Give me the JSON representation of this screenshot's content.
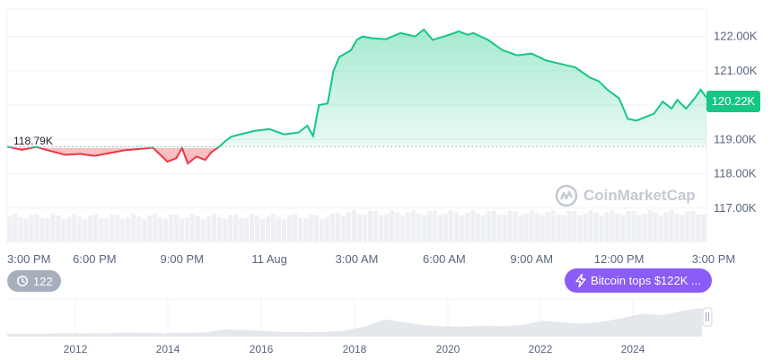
{
  "chart_data": {
    "type": "area",
    "title": "",
    "xlabel": "",
    "ylabel": "",
    "open_price_label": "118.79K",
    "open_price": 118.79,
    "current_price_label": "120.22K",
    "current_price": 120.22,
    "ylim": [
      116.0,
      122.8
    ],
    "y_ticks": [
      {
        "label": "122.00K",
        "value": 122.0
      },
      {
        "label": "121.00K",
        "value": 121.0
      },
      {
        "label": "120.00K",
        "value": 120.0
      },
      {
        "label": "119.00K",
        "value": 119.0
      },
      {
        "label": "118.00K",
        "value": 118.0
      },
      {
        "label": "117.00K",
        "value": 117.0
      }
    ],
    "xlim_hours": [
      0,
      24
    ],
    "x_ticks": [
      {
        "label": "3:00 PM",
        "hour": 0
      },
      {
        "label": "6:00 PM",
        "hour": 3
      },
      {
        "label": "9:00 PM",
        "hour": 6
      },
      {
        "label": "11 Aug",
        "hour": 9
      },
      {
        "label": "3:00 AM",
        "hour": 12
      },
      {
        "label": "6:00 AM",
        "hour": 15
      },
      {
        "label": "9:00 AM",
        "hour": 18
      },
      {
        "label": "12:00 PM",
        "hour": 21
      },
      {
        "label": "3:00 PM",
        "hour": 24
      }
    ],
    "series": [
      {
        "x": [
          0,
          0.5,
          1.0,
          1.5,
          2.0,
          2.5,
          3.0,
          3.5,
          4.0,
          4.5,
          5.0,
          5.5,
          5.8,
          6.0,
          6.2,
          6.5,
          6.8,
          7.0,
          7.3,
          7.5,
          7.7,
          8.0,
          8.5,
          9.0,
          9.5,
          10.0,
          10.3,
          10.5,
          10.7,
          11.0,
          11.2,
          11.4,
          11.6,
          11.8,
          12.0,
          12.2,
          12.5,
          13.0,
          13.5,
          14.0,
          14.3,
          14.6,
          15.0,
          15.5,
          15.8,
          16.0,
          16.5,
          17.0,
          17.5,
          18.0,
          18.5,
          19.0,
          19.5,
          20.0,
          20.3,
          20.6,
          21.0,
          21.3,
          21.6,
          21.9,
          22.2,
          22.5,
          22.8,
          23.0,
          23.3,
          23.6,
          23.8,
          24.0
        ],
        "values": [
          118.79,
          118.7,
          118.78,
          118.66,
          118.55,
          118.58,
          118.52,
          118.6,
          118.68,
          118.72,
          118.76,
          118.35,
          118.45,
          118.75,
          118.3,
          118.5,
          118.4,
          118.62,
          118.8,
          118.96,
          119.08,
          119.15,
          119.25,
          119.3,
          119.15,
          119.2,
          119.4,
          119.1,
          120.0,
          120.05,
          121.0,
          121.4,
          121.5,
          121.6,
          121.9,
          122.0,
          121.95,
          121.92,
          122.1,
          122.0,
          122.2,
          121.9,
          122.0,
          122.15,
          122.05,
          122.1,
          121.9,
          121.6,
          121.45,
          121.5,
          121.3,
          121.2,
          121.1,
          120.8,
          120.7,
          120.45,
          120.2,
          119.6,
          119.55,
          119.65,
          119.75,
          120.1,
          119.9,
          120.15,
          119.9,
          120.2,
          120.45,
          120.22
        ]
      }
    ],
    "volume_bars": 130,
    "x_year_ticks": [
      "2012",
      "2014",
      "2016",
      "2018",
      "2020",
      "2022",
      "2024"
    ],
    "overview_series": [
      1,
      1,
      1,
      1.2,
      1.1,
      1.2,
      1.4,
      1.3,
      1.2,
      1.3,
      1.5,
      2.5,
      2.3,
      1.9,
      1.6,
      1.5,
      1.6,
      2.1,
      3.5,
      6,
      5,
      4,
      3.6,
      3.5,
      3.8,
      3.6,
      4.2,
      5.5,
      5,
      4.5,
      5.2,
      6.5,
      8,
      7.5,
      9,
      10
    ],
    "grid": true,
    "colors": {
      "up": "#16c784",
      "down": "#ea3943",
      "grid": "#eff2f5"
    }
  },
  "history_pill": {
    "icon": "history-icon",
    "count": "122"
  },
  "event_pill": {
    "icon": "lightning-icon",
    "label": "Bitcoin tops $122K ..."
  },
  "watermark": {
    "text": "CoinMarketCap"
  }
}
